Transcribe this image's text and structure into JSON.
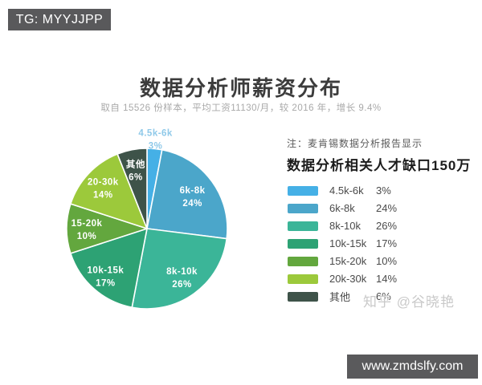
{
  "banners": {
    "top_left": "TG: MYYJJPP",
    "bottom_right": "www.zmdslfy.com"
  },
  "header": {
    "title": "数据分析师薪资分布",
    "subtitle": "取自 15526 份样本，平均工资11130/月，较 2016 年，增长 9.4%"
  },
  "note": {
    "line1": "注：麦肯锡数据分析报告显示",
    "line2": "数据分析相关人才缺口150万"
  },
  "watermark": "知乎 @谷晓艳",
  "chart_data": {
    "type": "pie",
    "title": "数据分析师薪资分布",
    "start_angle_deg": 0,
    "direction": "clockwise",
    "legend_position": "right",
    "slices": [
      {
        "label": "4.5k-6k",
        "pie_label": "4.5k-6k",
        "value": 3,
        "percent": "3%",
        "color": "#45b0e6",
        "label_color": "#8fc9e9",
        "label_r": 1.13,
        "outside": true
      },
      {
        "label": "6k-8k",
        "pie_label": "6k-8k",
        "value": 24,
        "percent": "24%",
        "color": "#4ba6ca",
        "label_color": "#ffffff",
        "label_r": 0.7
      },
      {
        "label": "8k-10k",
        "pie_label": "8k-10k",
        "value": 26,
        "percent": "26%",
        "color": "#3bb598",
        "label_color": "#ffffff",
        "label_r": 0.74
      },
      {
        "label": "10k-15k",
        "pie_label": "10k-15k",
        "value": 17,
        "percent": "17%",
        "color": "#2da274",
        "label_color": "#ffffff",
        "label_r": 0.78
      },
      {
        "label": "15k-20k",
        "pie_label": "15-20k",
        "value": 10,
        "percent": "10%",
        "color": "#63a73e",
        "label_color": "#ffffff",
        "label_r": 0.75
      },
      {
        "label": "20k-30k",
        "pie_label": "20-30k",
        "value": 14,
        "percent": "14%",
        "color": "#9cc93b",
        "label_color": "#ffffff",
        "label_r": 0.75
      },
      {
        "label": "其他",
        "pie_label": "其他",
        "value": 6,
        "percent": "6%",
        "color": "#3e5349",
        "label_color": "#ffffff",
        "label_r": 0.75
      }
    ]
  }
}
